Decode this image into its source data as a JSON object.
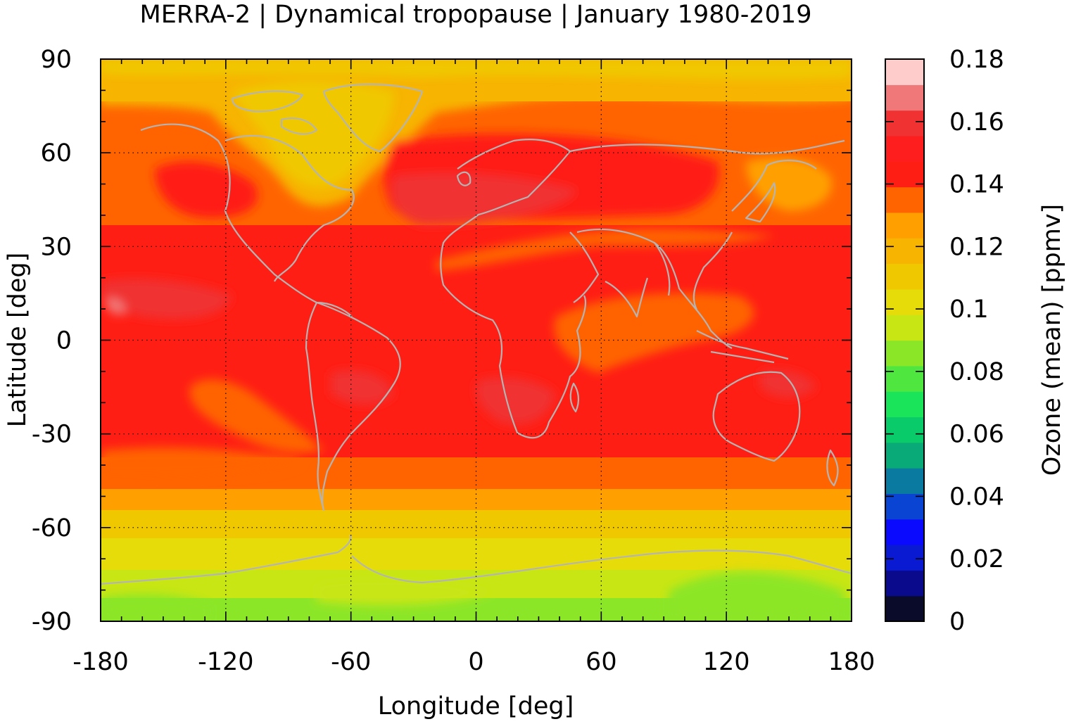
{
  "title": "MERRA-2 | Dynamical tropopause | January 1980-2019",
  "map": {
    "xlabel": "Longitude [deg]",
    "ylabel": "Latitude [deg]",
    "xlim": [
      -180,
      180
    ],
    "ylim": [
      -90,
      90
    ],
    "xticks": [
      -180,
      -120,
      -60,
      0,
      60,
      120,
      180
    ],
    "yticks": [
      90,
      60,
      30,
      0,
      -30,
      -60,
      -90
    ],
    "grid": true,
    "coastline_color": "#b4b4b4"
  },
  "colorbar": {
    "label": "Ozone (mean) [ppmv]",
    "min": 0,
    "max": 0.18,
    "ticks": [
      "0.18",
      "0.16",
      "0.14",
      "0.12",
      "0.1",
      "0.08",
      "0.06",
      "0.04",
      "0.02",
      "0"
    ],
    "tick_values": [
      0.18,
      0.16,
      0.14,
      0.12,
      0.1,
      0.08,
      0.06,
      0.04,
      0.02,
      0
    ],
    "colors": [
      "#0a0a2a",
      "#0a0a8c",
      "#0a1ad2",
      "#0a0aff",
      "#0a44d2",
      "#0a7aa0",
      "#0aaa78",
      "#0acb6a",
      "#1ae45a",
      "#50e640",
      "#8ce628",
      "#c8e614",
      "#e6dc0a",
      "#f0c800",
      "#f7b400",
      "#ffa000",
      "#ff6400",
      "#ff1e14",
      "#ff1e1e",
      "#f03232",
      "#f07878",
      "#ffcccc"
    ]
  },
  "legend_text": {
    "colorbar_label": "Ozone (mean) [ppmv]"
  }
}
